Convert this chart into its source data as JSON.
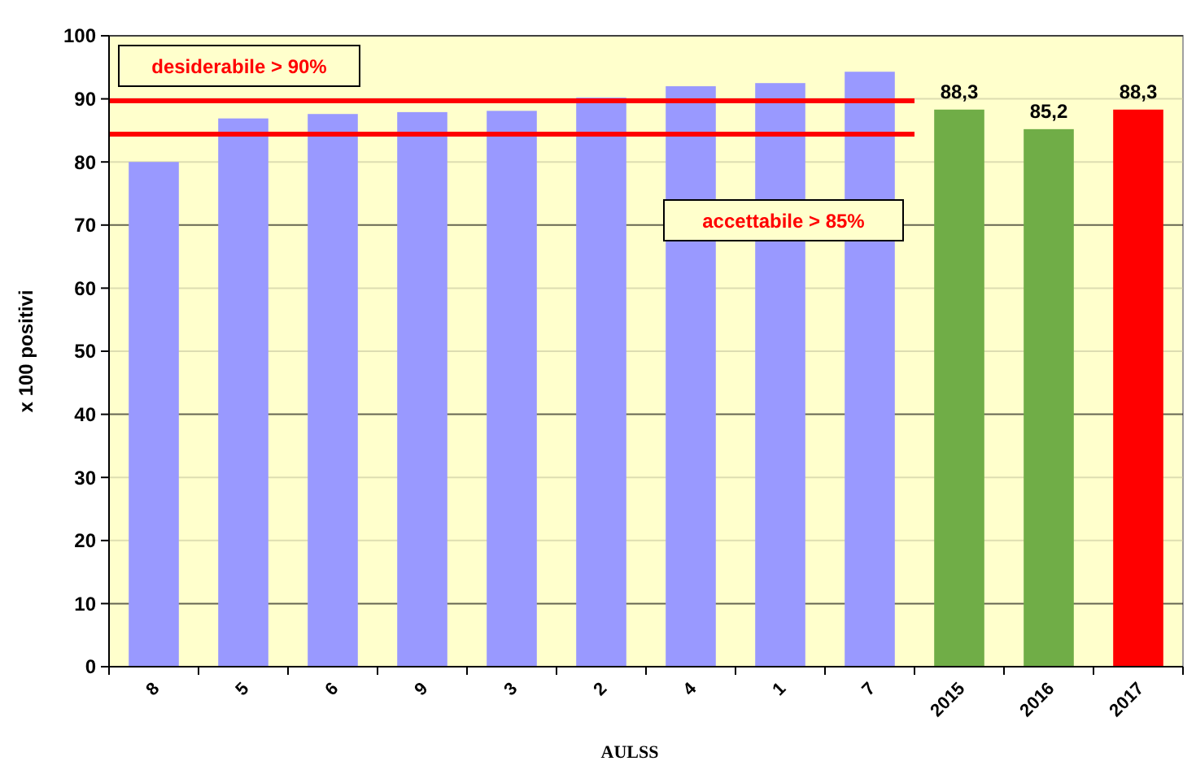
{
  "chart_data": {
    "type": "bar",
    "xlabel": "AULSS",
    "ylabel": "x 100 positivi",
    "categories": [
      "8",
      "5",
      "6",
      "9",
      "3",
      "2",
      "4",
      "1",
      "7",
      "2015",
      "2016",
      "2017"
    ],
    "values": [
      80,
      86.9,
      87.6,
      87.9,
      88.1,
      90.2,
      92,
      92.5,
      94.3,
      88.3,
      85.2,
      88.3
    ],
    "colors": [
      "#9999ff",
      "#9999ff",
      "#9999ff",
      "#9999ff",
      "#9999ff",
      "#9999ff",
      "#9999ff",
      "#9999ff",
      "#9999ff",
      "#70ad47",
      "#70ad47",
      "#ff0000"
    ],
    "value_labels": [
      null,
      null,
      null,
      null,
      null,
      null,
      null,
      null,
      null,
      "88,3",
      "85,2",
      "88,3"
    ],
    "ylim": [
      0,
      100
    ],
    "yticks": [
      0,
      10,
      20,
      30,
      40,
      50,
      60,
      70,
      80,
      90,
      100
    ],
    "grid": "y",
    "ref_lines": [
      {
        "axis": "y",
        "value": 89.7,
        "label": "desiderabile > 90%",
        "color": "#ff0000"
      },
      {
        "axis": "y",
        "value": 84.4,
        "label": "accettabile > 85%",
        "color": "#ff0000"
      }
    ]
  }
}
